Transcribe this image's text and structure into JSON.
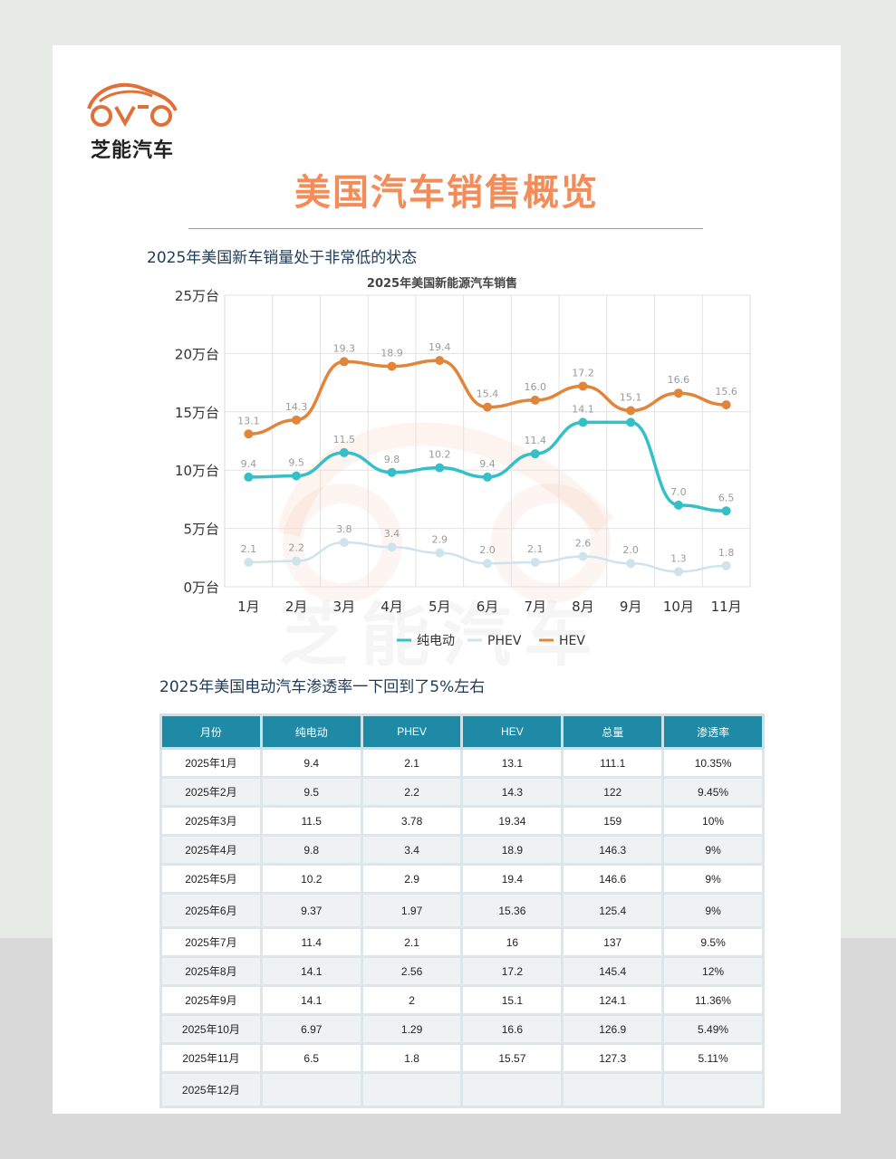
{
  "brand": {
    "name": "芝能汽车",
    "watermark": "芝能汽车"
  },
  "title": "美国汽车销售概览",
  "subtitle1": "2025年美国新车销量处于非常低的状态",
  "subtitle2": "2025年美国电动汽车渗透率一下回到了5%左右",
  "colors": {
    "bev": "#35c0c8",
    "phev": "#cfe3ec",
    "hev": "#e0853a",
    "header": "#1e8aa5",
    "title": "#f28d5a"
  },
  "chart_data": {
    "type": "line",
    "title": "2025年美国新能源汽车销售",
    "categories": [
      "1月",
      "2月",
      "3月",
      "4月",
      "5月",
      "6月",
      "7月",
      "8月",
      "9月",
      "10月",
      "11月"
    ],
    "y_ticks": [
      "0万台",
      "5万台",
      "10万台",
      "15万台",
      "20万台",
      "25万台"
    ],
    "ylim": [
      0,
      25
    ],
    "grid": true,
    "legend_position": "bottom",
    "series": [
      {
        "name": "纯电动",
        "values": [
          9.4,
          9.5,
          11.5,
          9.8,
          10.2,
          9.4,
          11.4,
          14.1,
          14.1,
          7.0,
          6.5
        ],
        "labels": [
          "9.4",
          "9.5",
          "11.5",
          "9.8",
          "10.2",
          "9.4",
          "11.4",
          "14.1",
          "",
          "7.0",
          "6.5"
        ]
      },
      {
        "name": "PHEV",
        "values": [
          2.1,
          2.2,
          3.8,
          3.4,
          2.9,
          2.0,
          2.1,
          2.6,
          2.0,
          1.3,
          1.8
        ],
        "labels": [
          "2.1",
          "2.2",
          "3.8",
          "3.4",
          "2.9",
          "2.0",
          "2.1",
          "2.6",
          "2.0",
          "1.3",
          "1.8"
        ]
      },
      {
        "name": "HEV",
        "values": [
          13.1,
          14.3,
          19.3,
          18.9,
          19.4,
          15.4,
          16.0,
          17.2,
          15.1,
          16.6,
          15.6
        ],
        "labels": [
          "13.1",
          "14.3",
          "19.3",
          "18.9",
          "19.4",
          "15.4",
          "16.0",
          "17.2",
          "15.1",
          "16.6",
          "15.6"
        ]
      }
    ]
  },
  "table": {
    "headers": [
      "月份",
      "纯电动",
      "PHEV",
      "HEV",
      "总量",
      "渗透率"
    ],
    "rows": [
      [
        "2025年1月",
        "9.4",
        "2.1",
        "13.1",
        "111.1",
        "10.35%"
      ],
      [
        "2025年2月",
        "9.5",
        "2.2",
        "14.3",
        "122",
        "9.45%"
      ],
      [
        "2025年3月",
        "11.5",
        "3.78",
        "19.34",
        "159",
        "10%"
      ],
      [
        "2025年4月",
        "9.8",
        "3.4",
        "18.9",
        "146.3",
        "9%"
      ],
      [
        "2025年5月",
        "10.2",
        "2.9",
        "19.4",
        "146.6",
        "9%"
      ],
      [
        "2025年6月",
        "9.37",
        "1.97",
        "15.36",
        "125.4",
        "9%"
      ],
      [
        "2025年7月",
        "11.4",
        "2.1",
        "16",
        "137",
        "9.5%"
      ],
      [
        "2025年8月",
        "14.1",
        "2.56",
        "17.2",
        "145.4",
        "12%"
      ],
      [
        "2025年9月",
        "14.1",
        "2",
        "15.1",
        "124.1",
        "11.36%"
      ],
      [
        "2025年10月",
        "6.97",
        "1.29",
        "16.6",
        "126.9",
        "5.49%"
      ],
      [
        "2025年11月",
        "6.5",
        "1.8",
        "15.57",
        "127.3",
        "5.11%"
      ],
      [
        "2025年12月",
        "",
        "",
        "",
        "",
        ""
      ]
    ]
  }
}
